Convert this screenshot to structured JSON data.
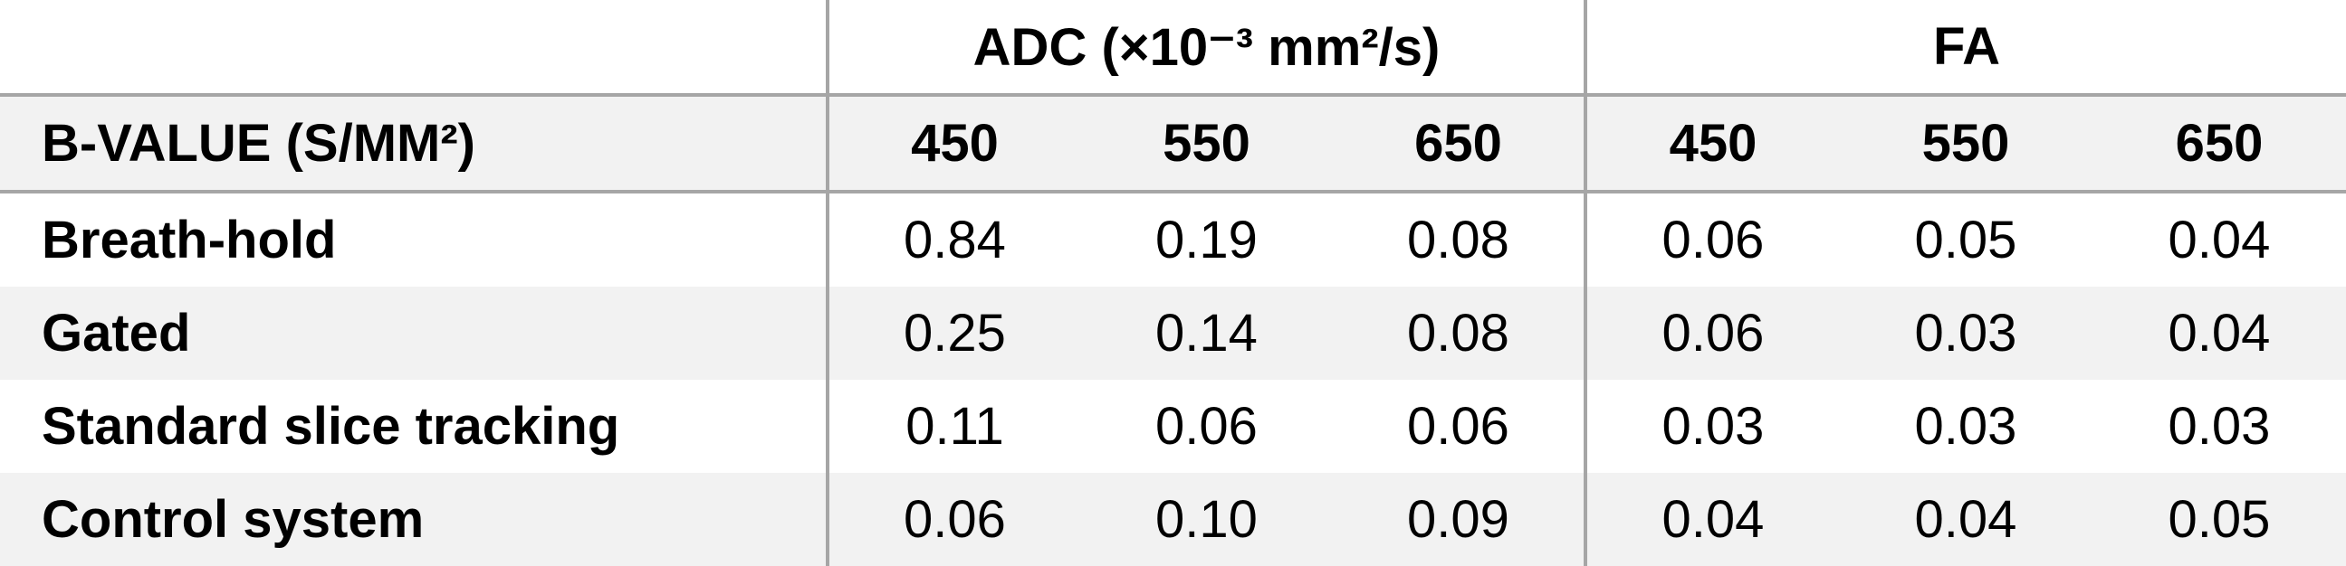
{
  "table": {
    "row_header_label": "B-VALUE (S/MM²)",
    "groups": [
      {
        "label": "ADC (×10⁻³ mm²/s)",
        "b_values": [
          "450",
          "550",
          "650"
        ]
      },
      {
        "label": "FA",
        "b_values": [
          "450",
          "550",
          "650"
        ]
      }
    ],
    "rows": [
      [
        "Breath-hold",
        "0.84",
        "0.19",
        "0.08",
        "0.06",
        "0.05",
        "0.04"
      ],
      [
        "Gated",
        "0.25",
        "0.14",
        "0.08",
        "0.06",
        "0.03",
        "0.04"
      ],
      [
        "Standard slice tracking",
        "0.11",
        "0.06",
        "0.06",
        "0.03",
        "0.03",
        "0.03"
      ],
      [
        "Control system",
        "0.06",
        "0.10",
        "0.09",
        "0.04",
        "0.04",
        "0.05"
      ]
    ]
  }
}
